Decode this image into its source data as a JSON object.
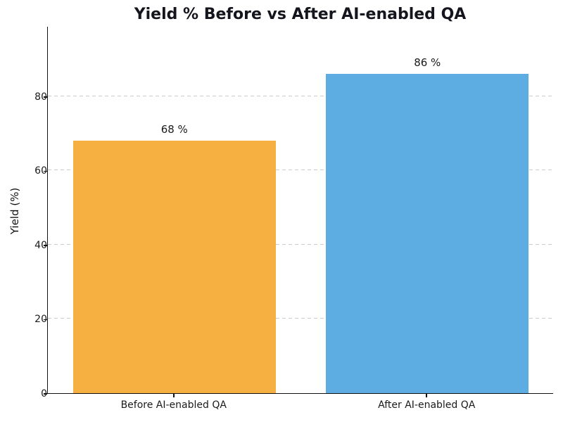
{
  "chart_data": {
    "type": "bar",
    "title": "Yield % Before vs After AI-enabled QA",
    "xlabel": "",
    "ylabel": "Yield (%)",
    "categories": [
      "Before AI-enabled QA",
      "After AI-enabled QA"
    ],
    "values": [
      68,
      86
    ],
    "bar_labels": [
      "68 %",
      "86 %"
    ],
    "bar_colors": [
      "#F5B041",
      "#5DADE2"
    ],
    "yticks": [
      0,
      20,
      40,
      60,
      80
    ],
    "ylim": [
      0,
      98.9
    ],
    "bar_width_fraction": 0.8,
    "grid": "horizontal dashed gridlines at yticks above 0, drawn behind bars",
    "gridline_color": "#cccccc",
    "legend": "none",
    "background_color": "#ffffff",
    "title_color": "#15151e"
  }
}
